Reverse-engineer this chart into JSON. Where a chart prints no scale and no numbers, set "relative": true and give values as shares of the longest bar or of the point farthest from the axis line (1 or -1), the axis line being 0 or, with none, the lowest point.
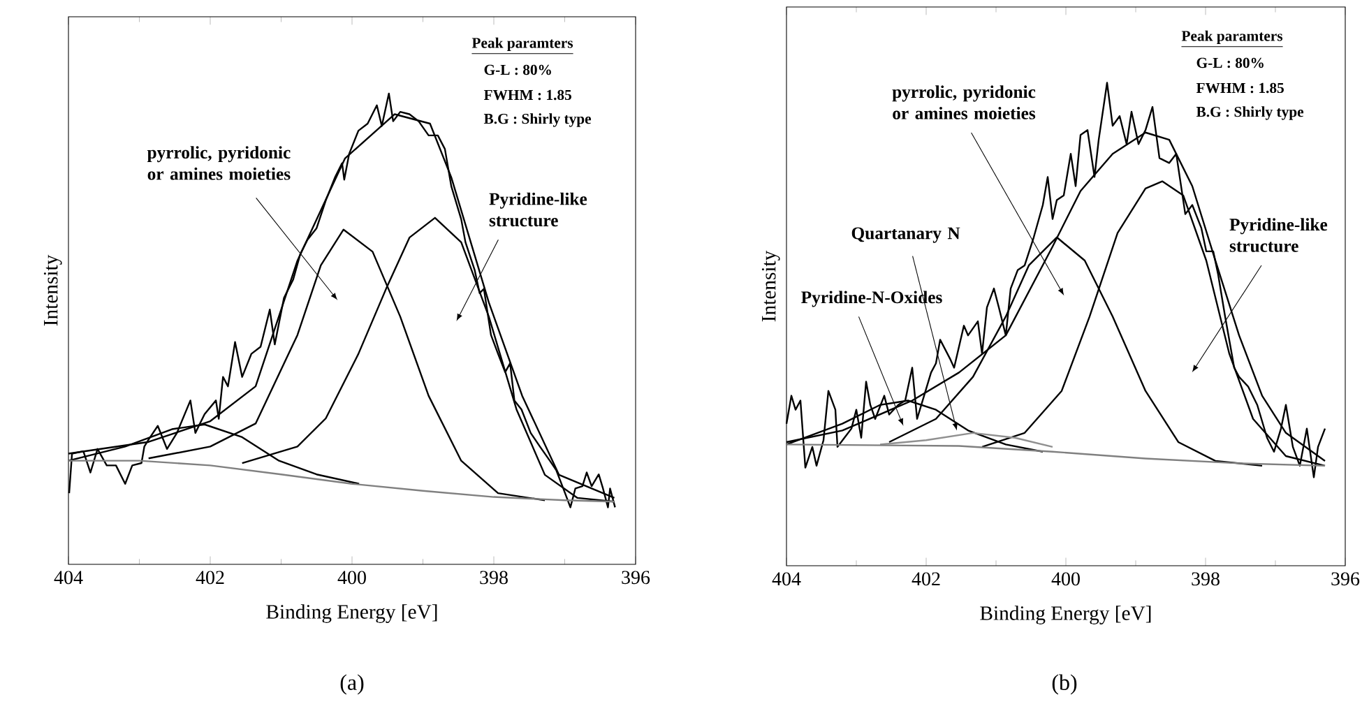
{
  "chart_data": [
    {
      "type": "line",
      "relative": true,
      "xlabel": "Binding Energy  [eV]",
      "ylabel": "Intensity",
      "xlim": [
        404,
        396
      ],
      "xticks": [
        404,
        402,
        400,
        398,
        396
      ],
      "series": [
        {
          "color": "#000000",
          "x": [
            403.99,
            403.95,
            403.79,
            403.69,
            403.59,
            403.46,
            403.33,
            403.2,
            403.1,
            402.97,
            402.93,
            402.87,
            402.74,
            402.61,
            402.47,
            402.28,
            402.21,
            402.08,
            401.92,
            401.88,
            401.82,
            401.75,
            401.65,
            401.55,
            401.42,
            401.29,
            401.16,
            401.09,
            400.96,
            400.83,
            400.73,
            400.63,
            400.5,
            400.37,
            400.24,
            400.14,
            400.11,
            400.04,
            399.91,
            399.78,
            399.65,
            399.58,
            399.48,
            399.42,
            399.32,
            399.19,
            399.06,
            398.92,
            398.79,
            398.69,
            398.6,
            398.46,
            398.4,
            398.27,
            398.2,
            398.14,
            398.04,
            397.94,
            397.84,
            397.77,
            397.71,
            397.61,
            397.48,
            397.35,
            397.21,
            397.12,
            397.02,
            396.92,
            396.85,
            396.75,
            396.69,
            396.62,
            396.52,
            396.46,
            396.39,
            396.36,
            396.29
          ],
          "values": [
            0.151,
            0.235,
            0.24,
            0.195,
            0.245,
            0.21,
            0.21,
            0.171,
            0.21,
            0.215,
            0.25,
            0.265,
            0.294,
            0.245,
            0.279,
            0.348,
            0.279,
            0.319,
            0.348,
            0.309,
            0.398,
            0.378,
            0.472,
            0.398,
            0.447,
            0.462,
            0.541,
            0.467,
            0.566,
            0.605,
            0.659,
            0.689,
            0.714,
            0.773,
            0.822,
            0.852,
            0.817,
            0.872,
            0.921,
            0.936,
            0.975,
            0.931,
            1.0,
            0.941,
            0.961,
            0.956,
            0.941,
            0.911,
            0.911,
            0.882,
            0.803,
            0.733,
            0.684,
            0.625,
            0.576,
            0.585,
            0.487,
            0.447,
            0.408,
            0.427,
            0.348,
            0.329,
            0.279,
            0.25,
            0.22,
            0.2,
            0.161,
            0.121,
            0.161,
            0.166,
            0.195,
            0.166,
            0.191,
            0.161,
            0.121,
            0.161,
            0.121
          ]
        },
        {
          "color": "#000000",
          "x": [
            404,
            402.87,
            402.0,
            401.36,
            400.77,
            400.1,
            399.4,
            398.9,
            398.6,
            398.07,
            397.6,
            397.08,
            396.3
          ],
          "values": [
            0.235,
            0.26,
            0.304,
            0.378,
            0.645,
            0.862,
            0.956,
            0.936,
            0.822,
            0.556,
            0.358,
            0.19,
            0.141
          ]
        },
        {
          "color": "#000000",
          "x": [
            402.87,
            402.0,
            401.36,
            400.77,
            400.44,
            400.12,
            399.71,
            399.32,
            398.92,
            398.46,
            397.94,
            397.28
          ],
          "values": [
            0.225,
            0.25,
            0.299,
            0.487,
            0.635,
            0.711,
            0.664,
            0.526,
            0.358,
            0.22,
            0.151,
            0.136
          ]
        },
        {
          "color": "#000000",
          "x": [
            401.55,
            400.77,
            400.37,
            399.91,
            399.52,
            399.19,
            398.83,
            398.46,
            398.07,
            397.68,
            397.28,
            396.82,
            396.3
          ],
          "values": [
            0.215,
            0.25,
            0.31,
            0.447,
            0.585,
            0.694,
            0.736,
            0.684,
            0.526,
            0.329,
            0.19,
            0.141,
            0.133
          ]
        },
        {
          "color": "#000000",
          "x": [
            404,
            403.2,
            402.54,
            402.08,
            401.55,
            401.03,
            400.5,
            399.9
          ],
          "values": [
            0.22,
            0.25,
            0.287,
            0.297,
            0.27,
            0.22,
            0.191,
            0.171
          ]
        },
        {
          "color": "#808080",
          "x": [
            404,
            403,
            402,
            401,
            400,
            399,
            398,
            397,
            396.3
          ],
          "values": [
            0.22,
            0.22,
            0.21,
            0.191,
            0.171,
            0.156,
            0.143,
            0.136,
            0.133
          ]
        }
      ],
      "annotations": [
        "pyrrolic, pyridonic or amines moieties",
        "Pyridine-like structure",
        "Peak paramters",
        "G-L : 80%",
        "FWHM : 1.85",
        "B.G : Shirly type",
        "(a)"
      ]
    },
    {
      "type": "line",
      "relative": true,
      "xlabel": "Binding Energy  [eV]",
      "ylabel": "Intensity",
      "xlim": [
        404,
        396
      ],
      "xticks": [
        404,
        402,
        400,
        398,
        396
      ],
      "series": [
        {
          "color": "#000000",
          "x": [
            404.0,
            403.93,
            403.87,
            403.8,
            403.73,
            403.63,
            403.57,
            403.47,
            403.4,
            403.3,
            403.27,
            403.17,
            403.07,
            403.0,
            402.93,
            402.86,
            402.8,
            402.73,
            402.6,
            402.53,
            402.4,
            402.3,
            402.2,
            402.13,
            402.03,
            401.93,
            401.86,
            401.8,
            401.66,
            401.6,
            401.46,
            401.4,
            401.26,
            401.2,
            401.13,
            401.03,
            400.96,
            400.86,
            400.79,
            400.69,
            400.59,
            400.46,
            400.33,
            400.26,
            400.19,
            400.13,
            400.03,
            399.93,
            399.86,
            399.79,
            399.69,
            399.59,
            399.53,
            399.41,
            399.33,
            399.23,
            399.13,
            399.06,
            398.96,
            398.86,
            398.76,
            398.66,
            398.52,
            398.42,
            398.29,
            398.19,
            398.06,
            397.99,
            397.89,
            397.82,
            397.72,
            397.59,
            397.52,
            397.39,
            397.26,
            397.12,
            397.02,
            396.92,
            396.85,
            396.75,
            396.65,
            396.55,
            396.45,
            396.39,
            396.29
          ],
          "values": [
            0.294,
            0.352,
            0.323,
            0.342,
            0.203,
            0.246,
            0.207,
            0.26,
            0.362,
            0.323,
            0.246,
            0.265,
            0.284,
            0.323,
            0.265,
            0.381,
            0.333,
            0.304,
            0.352,
            0.313,
            0.333,
            0.342,
            0.41,
            0.304,
            0.352,
            0.4,
            0.419,
            0.468,
            0.429,
            0.41,
            0.497,
            0.477,
            0.506,
            0.439,
            0.535,
            0.574,
            0.535,
            0.477,
            0.574,
            0.612,
            0.622,
            0.68,
            0.747,
            0.805,
            0.718,
            0.757,
            0.767,
            0.853,
            0.786,
            0.892,
            0.902,
            0.805,
            0.882,
            1.0,
            0.911,
            0.931,
            0.873,
            0.94,
            0.873,
            0.902,
            0.95,
            0.844,
            0.834,
            0.853,
            0.728,
            0.747,
            0.699,
            0.651,
            0.651,
            0.603,
            0.516,
            0.41,
            0.391,
            0.371,
            0.333,
            0.265,
            0.236,
            0.284,
            0.333,
            0.246,
            0.207,
            0.284,
            0.183,
            0.246,
            0.284
          ]
        },
        {
          "color": "#000000",
          "x": [
            404,
            403.2,
            402.2,
            401.53,
            400.86,
            400.19,
            399.79,
            399.33,
            398.86,
            398.52,
            398.19,
            397.86,
            397.52,
            397.19,
            396.85,
            396.29
          ],
          "values": [
            0.256,
            0.28,
            0.342,
            0.4,
            0.477,
            0.661,
            0.776,
            0.853,
            0.897,
            0.882,
            0.786,
            0.632,
            0.477,
            0.352,
            0.275,
            0.217
          ]
        },
        {
          "color": "#000000",
          "x": [
            402.53,
            401.86,
            401.33,
            400.86,
            400.53,
            400.13,
            399.73,
            399.33,
            398.86,
            398.39,
            397.86,
            397.19
          ],
          "values": [
            0.256,
            0.304,
            0.391,
            0.516,
            0.622,
            0.68,
            0.632,
            0.516,
            0.362,
            0.256,
            0.217,
            0.207
          ]
        },
        {
          "color": "#000000",
          "x": [
            401.2,
            400.59,
            400.06,
            399.66,
            399.26,
            398.86,
            398.62,
            398.32,
            397.99,
            397.66,
            397.32,
            396.85,
            396.29
          ],
          "values": [
            0.246,
            0.275,
            0.362,
            0.516,
            0.689,
            0.781,
            0.796,
            0.767,
            0.632,
            0.439,
            0.304,
            0.227,
            0.207
          ]
        },
        {
          "color": "#000000",
          "x": [
            404,
            403.2,
            402.66,
            402.26,
            401.86,
            401.4,
            400.86,
            400.33
          ],
          "values": [
            0.251,
            0.294,
            0.333,
            0.342,
            0.323,
            0.28,
            0.251,
            0.236
          ]
        },
        {
          "color": "#909090",
          "x": [
            402.66,
            402.0,
            401.33,
            400.73,
            400.19
          ],
          "values": [
            0.251,
            0.26,
            0.275,
            0.265,
            0.246
          ]
        },
        {
          "color": "#808080",
          "x": [
            404,
            401.53,
            400.19,
            398.86,
            397.52,
            396.29
          ],
          "values": [
            0.251,
            0.248,
            0.236,
            0.222,
            0.212,
            0.207
          ]
        }
      ],
      "annotations": [
        "pyrrolic, pyridonic or amines moieties",
        "Quartanary N",
        "Pyridine-N-Oxides",
        "Pyridine-like structure",
        "Peak paramters",
        "G-L : 80%",
        "FWHM : 1.85",
        "B.G : Shirly type",
        "(b)"
      ]
    }
  ]
}
